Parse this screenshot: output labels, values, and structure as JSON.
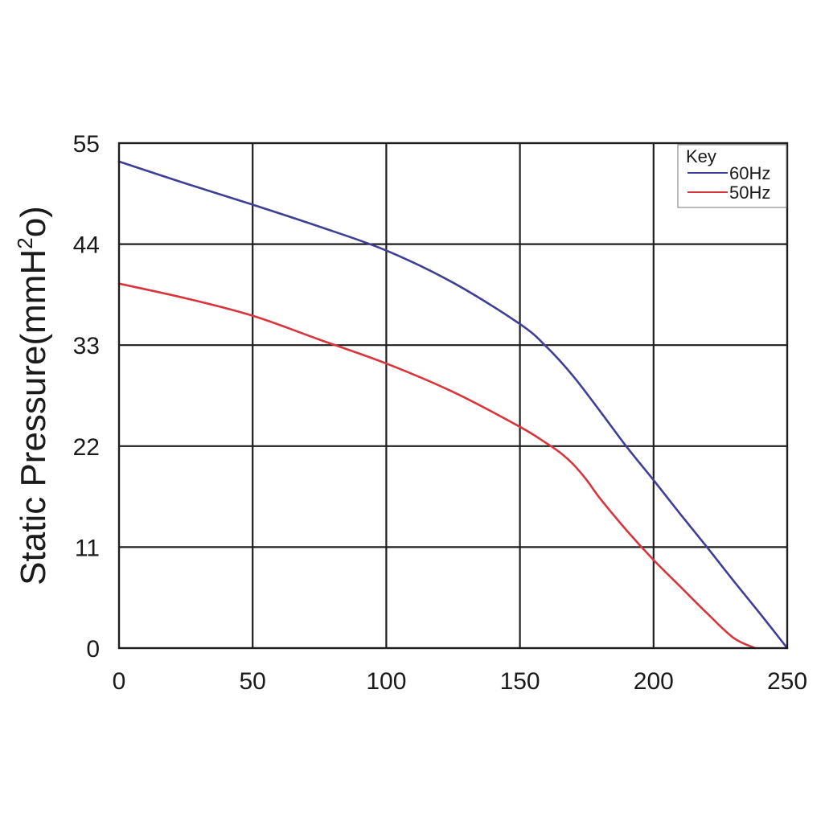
{
  "chart_data": {
    "type": "line",
    "title": "",
    "xlabel": "",
    "ylabel": "Static Pressure(mmH",
    "ylabel_sup": "2",
    "ylabel_end": "o)",
    "xlim": [
      0,
      250
    ],
    "ylim": [
      0,
      55
    ],
    "x_ticks": [
      0,
      50,
      100,
      150,
      200,
      250
    ],
    "y_ticks": [
      0,
      11,
      22,
      33,
      44,
      55
    ],
    "grid": true,
    "legend": {
      "title": "Key",
      "placement": "top-right"
    },
    "series": [
      {
        "name": "60Hz",
        "color": "#3f3f95",
        "x": [
          0,
          25,
          50,
          75,
          100,
          125,
          150,
          160,
          170,
          180,
          190,
          200,
          210,
          220,
          230,
          240,
          250
        ],
        "y": [
          53,
          50.6,
          48.3,
          45.9,
          43.3,
          39.8,
          35.3,
          32.8,
          29.6,
          25.8,
          21.9,
          18.3,
          14.6,
          11,
          7.3,
          3.7,
          0
        ]
      },
      {
        "name": "50Hz",
        "color": "#d8353c",
        "x": [
          0,
          25,
          50,
          75,
          100,
          125,
          150,
          160,
          165,
          170,
          175,
          180,
          190,
          200,
          210,
          220,
          230,
          238
        ],
        "y": [
          39.7,
          38.1,
          36.2,
          33.6,
          31,
          27.9,
          24.1,
          22.3,
          21.3,
          20,
          18.3,
          16.3,
          12.8,
          9.6,
          6.7,
          3.8,
          1.1,
          0
        ]
      }
    ]
  }
}
